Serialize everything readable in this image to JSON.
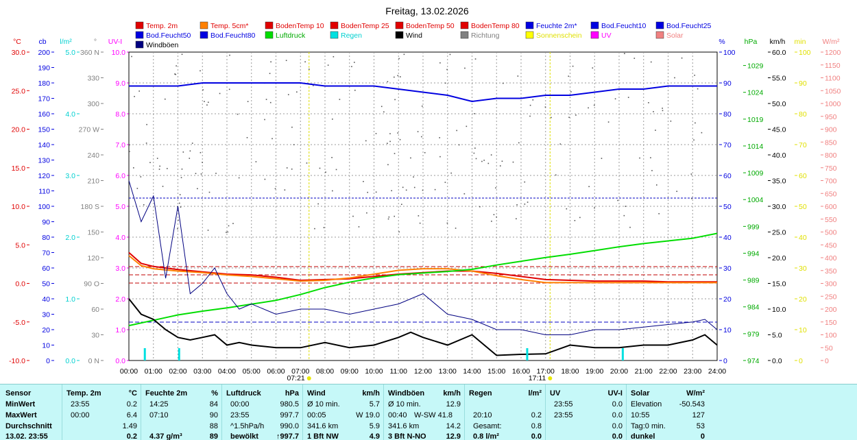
{
  "title": "Freitag, 13.02.2026",
  "legend": [
    {
      "label": "Temp. 2m",
      "color": "#e00000",
      "text_color": "#e00000"
    },
    {
      "label": "Temp. 5cm*",
      "color": "#ff8000",
      "text_color": "#e00000"
    },
    {
      "label": "BodenTemp 10",
      "color": "#e00000",
      "text_color": "#e00000"
    },
    {
      "label": "BodenTemp 25",
      "color": "#e00000",
      "text_color": "#e00000"
    },
    {
      "label": "BodenTemp 50",
      "color": "#e00000",
      "text_color": "#e00000"
    },
    {
      "label": "BodenTemp 80",
      "color": "#e00000",
      "text_color": "#e00000"
    },
    {
      "label": "Feuchte 2m*",
      "color": "#0000e0",
      "text_color": "#0000e0"
    },
    {
      "label": "Bod.Feucht10",
      "color": "#0000e0",
      "text_color": "#0000e0"
    },
    {
      "label": "Bod.Feucht25",
      "color": "#0000e0",
      "text_color": "#0000e0"
    },
    {
      "label": "Bod.Feucht50",
      "color": "#0000e0",
      "text_color": "#0000e0"
    },
    {
      "label": "Bod.Feucht80",
      "color": "#0000e0",
      "text_color": "#0000e0"
    },
    {
      "label": "Luftdruck",
      "color": "#00dd00",
      "text_color": "#00aa00"
    },
    {
      "label": "Regen",
      "color": "#00e0e0",
      "text_color": "#00d0d0"
    },
    {
      "label": "Wind",
      "color": "#000000",
      "text_color": "#000000"
    },
    {
      "label": "Richtung",
      "color": "#808080",
      "text_color": "#808080"
    },
    {
      "label": "Sonnenschein",
      "color": "#ffff00",
      "text_color": "#e0e000"
    },
    {
      "label": "UV",
      "color": "#ff00ff",
      "text_color": "#ff00ff"
    },
    {
      "label": "Solar",
      "color": "#f08080",
      "text_color": "#f08080"
    },
    {
      "label": "Windböen",
      "color": "#000080",
      "text_color": "#000000"
    }
  ],
  "axes": {
    "temp": {
      "unit": "°C",
      "color": "#e00000",
      "ticks": [
        "30.0",
        "25.0",
        "20.0",
        "15.0",
        "10.0",
        "5.0",
        "0.0",
        "-5.0",
        "-10.0"
      ]
    },
    "cb": {
      "unit": "cb",
      "color": "#0000e0",
      "ticks": [
        "200",
        "190",
        "180",
        "170",
        "160",
        "150",
        "140",
        "130",
        "120",
        "110",
        "100",
        "90",
        "80",
        "70",
        "60",
        "50",
        "40",
        "30",
        "20",
        "10",
        "0"
      ]
    },
    "rain": {
      "unit": "l/m²",
      "color": "#00d0d0",
      "ticks": [
        "5.0",
        "4.0",
        "3.0",
        "2.0",
        "1.0",
        "0.0"
      ]
    },
    "dir": {
      "unit": "°",
      "color": "#808080",
      "ticks": [
        "360 N",
        "330",
        "300",
        "270 W",
        "240",
        "210",
        "180 S",
        "150",
        "120",
        "90 O",
        "60",
        "30",
        "0 N"
      ]
    },
    "uvi": {
      "unit": "UV-I",
      "color": "#ff00ff",
      "ticks": [
        "10.0",
        "9.0",
        "8.0",
        "7.0",
        "6.0",
        "5.0",
        "4.0",
        "3.0",
        "2.0",
        "1.0",
        "0.0"
      ]
    },
    "humidity": {
      "unit": "%",
      "color": "#0000e0",
      "ticks": [
        "100",
        "90",
        "80",
        "70",
        "60",
        "50",
        "40",
        "30",
        "20",
        "10",
        "0"
      ]
    },
    "pressure": {
      "unit": "hPa",
      "color": "#00aa00",
      "ticks": [
        "1029",
        "1024",
        "1019",
        "1014",
        "1009",
        "1004",
        "999",
        "994",
        "989",
        "984",
        "979",
        "974"
      ]
    },
    "wind": {
      "unit": "km/h",
      "color": "#000000",
      "ticks": [
        "60.0",
        "55.0",
        "50.0",
        "45.0",
        "40.0",
        "35.0",
        "30.0",
        "25.0",
        "20.0",
        "15.0",
        "10.0",
        "5.0",
        "0.0"
      ]
    },
    "sun": {
      "unit": "min",
      "color": "#e0e000",
      "ticks": [
        "100",
        "90",
        "80",
        "70",
        "60",
        "50",
        "40",
        "30",
        "20",
        "10",
        "0"
      ]
    },
    "solar": {
      "unit": "W/m²",
      "color": "#f08080",
      "ticks": [
        "1200",
        "1150",
        "1100",
        "1050",
        "1000",
        "950",
        "900",
        "850",
        "800",
        "750",
        "700",
        "650",
        "600",
        "550",
        "500",
        "450",
        "400",
        "350",
        "300",
        "250",
        "200",
        "150",
        "100",
        "50",
        "0"
      ]
    }
  },
  "x_ticks": [
    "00:00",
    "01:00",
    "02:00",
    "03:00",
    "04:00",
    "05:00",
    "06:00",
    "07:00",
    "08:00",
    "09:00",
    "10:00",
    "11:00",
    "12:00",
    "13:00",
    "14:00",
    "15:00",
    "16:00",
    "17:00",
    "18:00",
    "19:00",
    "20:00",
    "21:00",
    "22:00",
    "23:00",
    "24:00"
  ],
  "sunrise": "07:21",
  "sunset": "17:11",
  "chart_data": {
    "type": "line",
    "title": "Freitag, 13.02.2026",
    "x_unit": "hours",
    "xlim": [
      0,
      24
    ],
    "ylim_temp": [
      -10,
      30
    ],
    "ylim_wind": [
      0,
      60
    ],
    "ylim_humidity": [
      0,
      100
    ],
    "ylim_pressure": [
      974,
      1031.5
    ],
    "series": [
      {
        "name": "Temp. 2m",
        "axis": "temp",
        "color": "#e00000",
        "x": [
          0,
          0.5,
          1,
          2,
          3,
          4,
          5,
          6,
          7,
          8,
          9,
          10,
          11,
          12,
          13,
          14,
          15,
          16,
          17,
          18,
          19,
          20,
          21,
          22,
          23,
          24
        ],
        "y": [
          4.0,
          2.6,
          2.2,
          1.8,
          1.5,
          1.2,
          1.1,
          0.8,
          0.4,
          0.5,
          0.6,
          0.9,
          1.2,
          1.4,
          1.6,
          1.6,
          1.3,
          0.9,
          0.5,
          0.4,
          0.3,
          0.3,
          0.3,
          0.2,
          0.2,
          0.2
        ]
      },
      {
        "name": "Temp. 5cm*",
        "axis": "temp",
        "color": "#ff8000",
        "x": [
          0,
          0.5,
          1,
          2,
          3,
          4,
          5,
          6,
          7,
          8,
          9,
          10,
          11,
          12,
          13,
          14,
          15,
          16,
          17,
          18,
          19,
          20,
          21,
          22,
          23,
          24
        ],
        "y": [
          3.6,
          2.3,
          1.9,
          1.6,
          1.4,
          1.1,
          0.9,
          0.6,
          0.3,
          0.4,
          0.7,
          1.2,
          1.7,
          1.9,
          1.9,
          1.6,
          1.0,
          0.5,
          0.1,
          0.1,
          0.1,
          0.1,
          0.1,
          0.1,
          0.1,
          0.1
        ]
      },
      {
        "name": "Feuchte 2m*",
        "axis": "humidity",
        "color": "#0000e0",
        "x": [
          0,
          1,
          2,
          3,
          4,
          5,
          6,
          7,
          8,
          9,
          10,
          11,
          12,
          13,
          14,
          15,
          16,
          17,
          18,
          19,
          20,
          21,
          22,
          23,
          24
        ],
        "y": [
          89,
          89,
          89,
          90,
          90,
          90,
          90,
          90,
          89,
          89,
          89,
          88,
          87,
          86,
          84,
          85,
          85,
          86,
          86,
          87,
          88,
          88,
          89,
          89,
          89
        ]
      },
      {
        "name": "Luftdruck",
        "axis": "pressure",
        "color": "#00dd00",
        "x": [
          0,
          1,
          2,
          3,
          4,
          5,
          6,
          7,
          8,
          9,
          10,
          11,
          12,
          13,
          14,
          15,
          16,
          17,
          18,
          19,
          20,
          21,
          22,
          23,
          24
        ],
        "y": [
          980.5,
          981.5,
          982.5,
          983.2,
          983.8,
          984.5,
          985.2,
          986.3,
          987.6,
          988.6,
          989.4,
          990.0,
          990.3,
          990.6,
          991.0,
          991.8,
          992.5,
          993.2,
          993.8,
          994.5,
          995.2,
          995.8,
          996.3,
          996.8,
          997.7
        ]
      },
      {
        "name": "Wind",
        "axis": "wind",
        "color": "#000000",
        "x": [
          0,
          0.5,
          1,
          1.5,
          2,
          2.5,
          3,
          3.5,
          4,
          4.5,
          5,
          6,
          7,
          8,
          9,
          10,
          11,
          11.5,
          12,
          13,
          14,
          15,
          16,
          17,
          18,
          19,
          20,
          21,
          22,
          23,
          23.5,
          24
        ],
        "y": [
          12.0,
          9.0,
          8.0,
          6.0,
          4.5,
          4.0,
          4.5,
          5.0,
          3.0,
          3.5,
          3.0,
          2.5,
          2.5,
          3.5,
          2.5,
          3.0,
          4.5,
          5.5,
          4.5,
          3.0,
          5.0,
          1.0,
          1.2,
          1.3,
          3.0,
          2.5,
          2.5,
          3.0,
          3.0,
          4.0,
          5.0,
          3.0
        ]
      },
      {
        "name": "Windböen",
        "axis": "wind",
        "color": "#000080",
        "x": [
          0,
          0.5,
          1,
          1.5,
          2,
          2.5,
          3,
          3.5,
          4,
          4.5,
          5,
          6,
          7,
          8,
          9,
          10,
          11,
          12,
          13,
          14,
          15,
          16,
          17,
          18,
          19,
          20,
          21,
          22,
          23,
          23.5,
          24
        ],
        "y": [
          35.0,
          27.0,
          32.0,
          16.0,
          30.0,
          13.0,
          15.0,
          18.0,
          13.0,
          10.0,
          11.0,
          9.0,
          10.0,
          10.0,
          9.0,
          10.0,
          11.0,
          13.0,
          9.0,
          8.0,
          6.0,
          6.0,
          5.0,
          5.0,
          6.0,
          6.0,
          6.5,
          7.0,
          7.5,
          8.0,
          6.0
        ]
      },
      {
        "name": "Regen",
        "axis": "rain",
        "color": "#00e0e0",
        "type": "bar",
        "x": [
          0.65,
          2.05,
          16.25,
          20.15
        ],
        "y": [
          0.2,
          0.2,
          0.2,
          0.2
        ]
      }
    ]
  },
  "stats": {
    "sensor": {
      "head": "Sensor",
      "rows": [
        "MinWert",
        "MaxWert",
        "Durchschnitt",
        "13.02. 23:55"
      ]
    },
    "temp": {
      "head": "Temp. 2m",
      "unit": "°C",
      "times": [
        "23:55",
        "00:00",
        "",
        ""
      ],
      "values": [
        "0.2",
        "6.4",
        "1.49",
        "0.2"
      ]
    },
    "hum": {
      "head": "Feuchte 2m",
      "unit": "%",
      "times": [
        "14:25",
        "07:10",
        "",
        "4.37 g/m³"
      ],
      "values": [
        "84",
        "90",
        "88",
        "89"
      ]
    },
    "press": {
      "head": "Luftdruck",
      "unit": "hPa",
      "times": [
        "00:00",
        "23:55",
        "^1.5hPa/h",
        "bewölkt"
      ],
      "values": [
        "980.5",
        "997.7",
        "990.0",
        "↑997.7"
      ]
    },
    "wind": {
      "head": "Wind",
      "unit": "km/h",
      "labels": [
        "Ø 10 min.",
        "00:05",
        "341.6 km",
        "1 Bft NW"
      ],
      "values": [
        "5.7",
        "W 19.0",
        "5.9",
        "4.9"
      ]
    },
    "gust": {
      "head": "Windböen",
      "unit": "km/h",
      "labels": [
        "Ø 10 min.",
        "00:40",
        "341.6 km",
        "3 Bft N-NO"
      ],
      "mid": [
        "",
        "W-SW 41.8",
        "",
        ""
      ],
      "values": [
        "12.9",
        "",
        "14.2",
        "12.9"
      ]
    },
    "rain": {
      "head": "Regen",
      "unit": "l/m²",
      "labels": [
        "",
        "20:10",
        "Gesamt:",
        "0.8 l/m²"
      ],
      "values": [
        "",
        "0.2",
        "0.8",
        "0.0"
      ]
    },
    "uv": {
      "head": "UV",
      "unit": "UV-I",
      "labels": [
        "23:55",
        "23:55",
        "",
        ""
      ],
      "values": [
        "0.0",
        "0.0",
        "0.0",
        "0.0"
      ]
    },
    "solar": {
      "head": "Solar",
      "unit": "W/m²",
      "labels": [
        "Elevation",
        "10:55",
        "Tag:0 min.",
        "dunkel"
      ],
      "values": [
        "-50.543",
        "127",
        "53",
        "0"
      ]
    }
  }
}
